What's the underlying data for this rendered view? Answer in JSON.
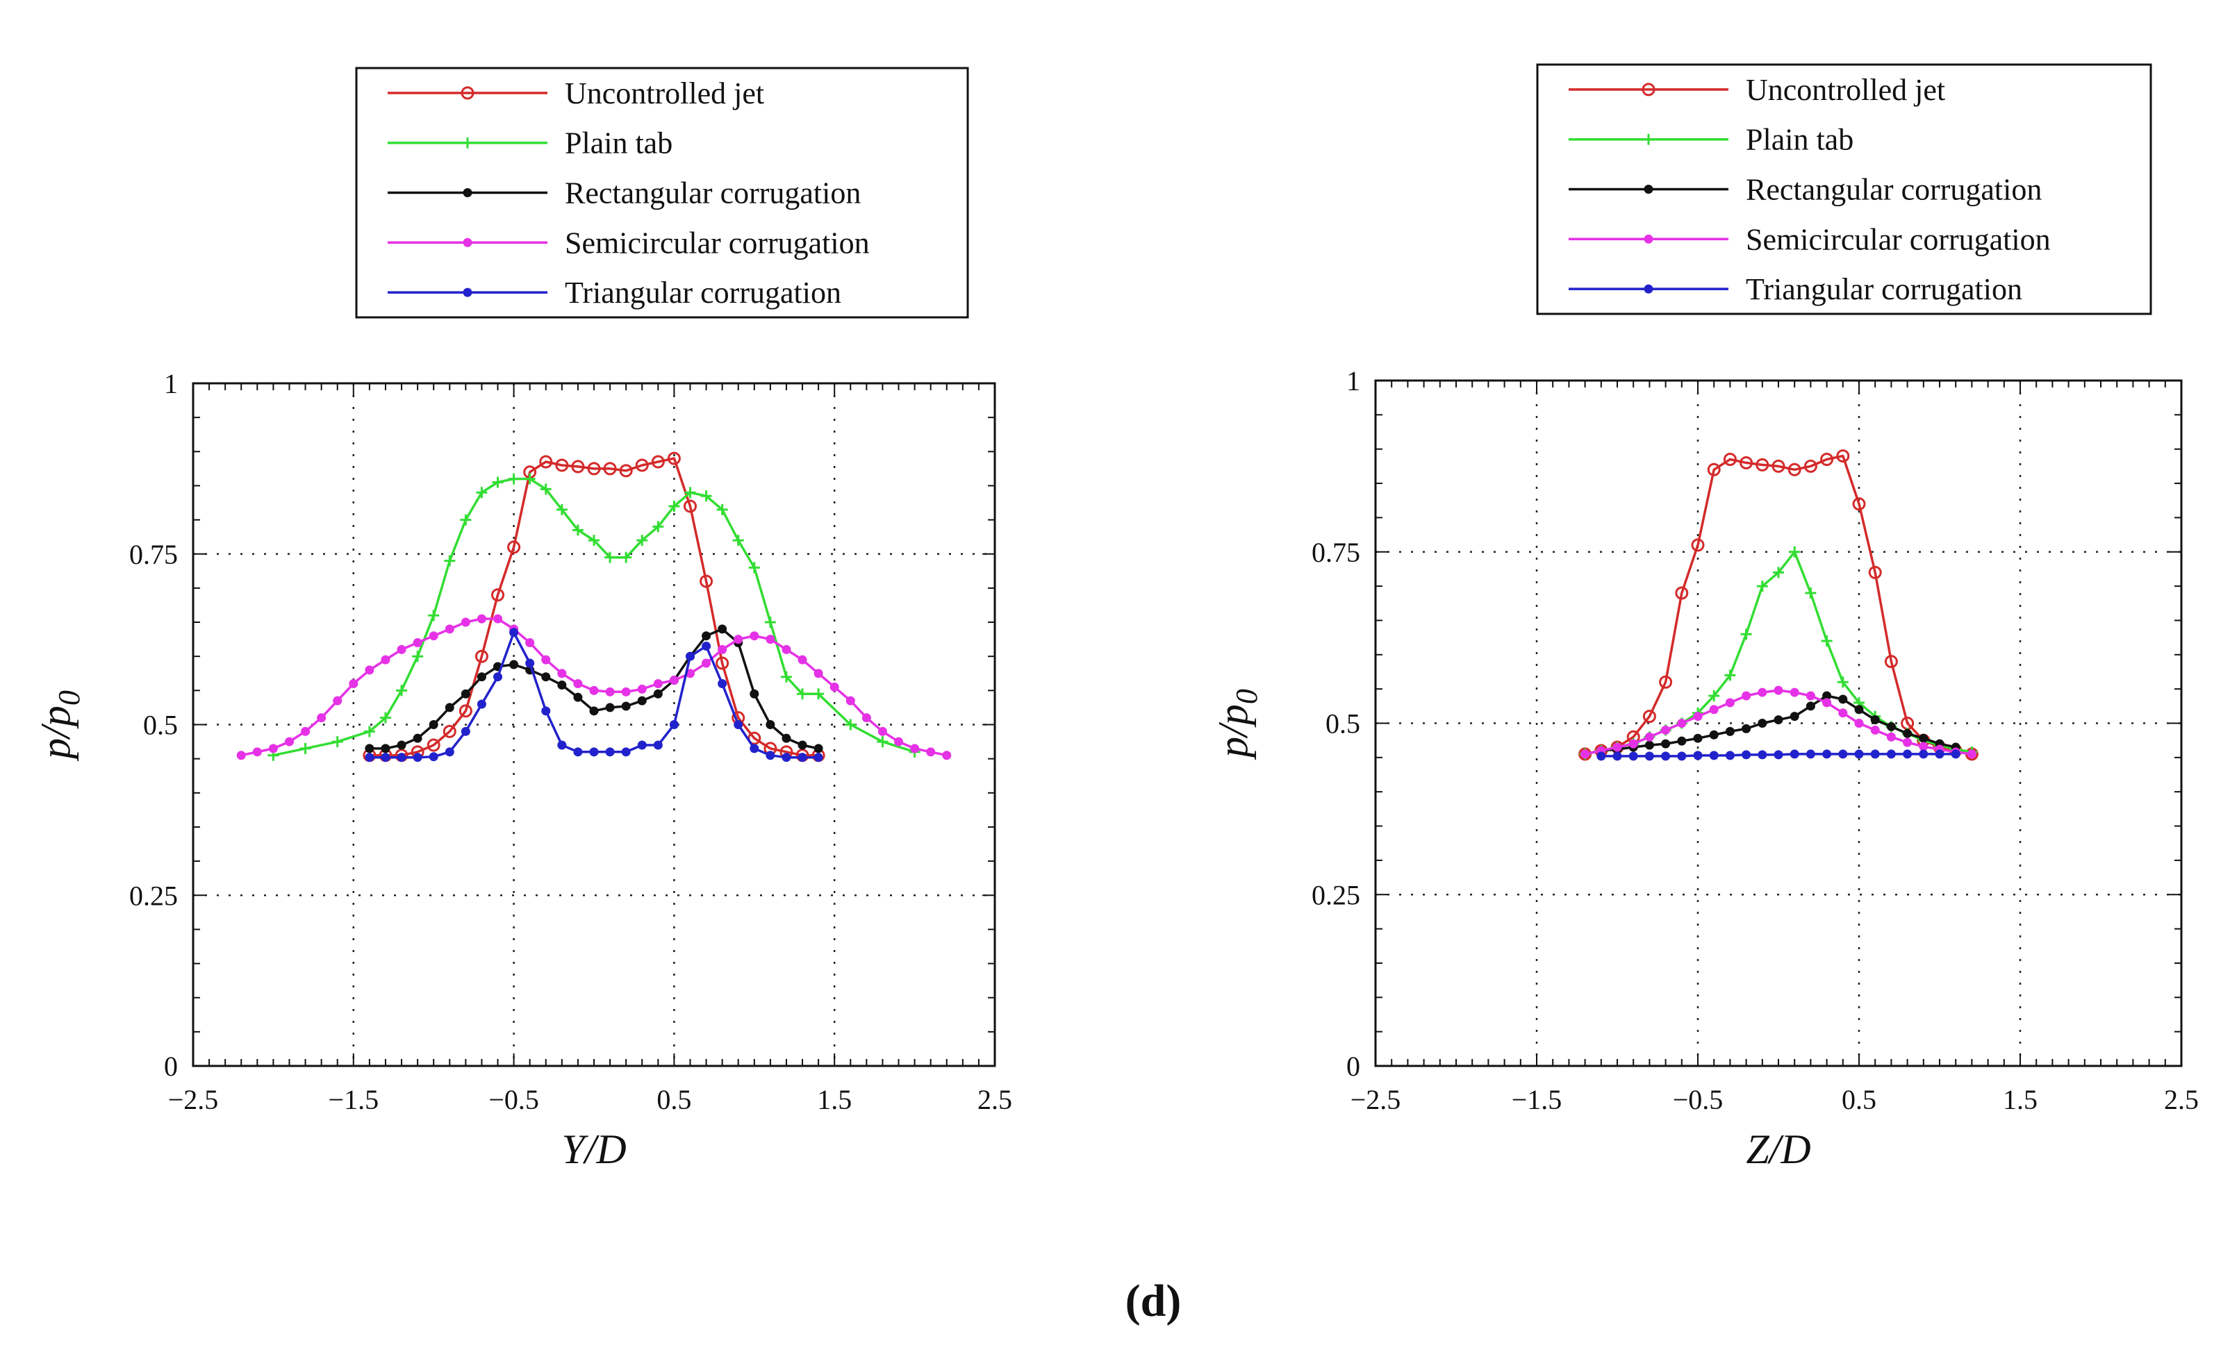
{
  "caption": "(d)",
  "colors": {
    "uncontrolled": "#d42a2a",
    "plain": "#33dd33",
    "rect": "#111111",
    "semi": "#e632e6",
    "tri": "#2222cc"
  },
  "chart_data": [
    {
      "type": "line",
      "xlabel": "Y/D",
      "ylabel_main": "p/p",
      "ylabel_sub": "0",
      "xlim": [
        -2.5,
        2.5
      ],
      "ylim": [
        0,
        1
      ],
      "xticks": [
        "-2.5",
        "-1.5",
        "-0.5",
        "0.5",
        "1.5",
        "2.5"
      ],
      "yticks": [
        "0",
        "0.25",
        "0.5",
        "0.75",
        "1"
      ],
      "legend": "top-center",
      "series": [
        {
          "name": "Uncontrolled jet",
          "color": "uncontrolled",
          "marker": "circle",
          "x": [
            -1.4,
            -1.3,
            -1.2,
            -1.1,
            -1.0,
            -0.9,
            -0.8,
            -0.7,
            -0.6,
            -0.5,
            -0.4,
            -0.3,
            -0.2,
            -0.1,
            0.0,
            0.1,
            0.2,
            0.3,
            0.4,
            0.5,
            0.6,
            0.7,
            0.8,
            0.9,
            1.0,
            1.1,
            1.2,
            1.3,
            1.4
          ],
          "y": [
            0.455,
            0.455,
            0.455,
            0.46,
            0.47,
            0.49,
            0.52,
            0.6,
            0.69,
            0.76,
            0.87,
            0.885,
            0.88,
            0.878,
            0.875,
            0.875,
            0.872,
            0.88,
            0.885,
            0.89,
            0.82,
            0.71,
            0.59,
            0.51,
            0.48,
            0.465,
            0.46,
            0.455,
            0.455
          ]
        },
        {
          "name": "Plain tab",
          "color": "plain",
          "marker": "plus",
          "x": [
            -2.0,
            -1.8,
            -1.6,
            -1.4,
            -1.3,
            -1.2,
            -1.1,
            -1.0,
            -0.9,
            -0.8,
            -0.7,
            -0.6,
            -0.5,
            -0.4,
            -0.3,
            -0.2,
            -0.1,
            0.0,
            0.1,
            0.2,
            0.3,
            0.4,
            0.5,
            0.6,
            0.7,
            0.8,
            0.9,
            1.0,
            1.1,
            1.2,
            1.3,
            1.4,
            1.6,
            1.8,
            2.0
          ],
          "y": [
            0.455,
            0.465,
            0.475,
            0.49,
            0.51,
            0.55,
            0.6,
            0.66,
            0.74,
            0.8,
            0.84,
            0.855,
            0.86,
            0.86,
            0.845,
            0.815,
            0.785,
            0.77,
            0.745,
            0.745,
            0.77,
            0.79,
            0.82,
            0.84,
            0.835,
            0.815,
            0.77,
            0.73,
            0.65,
            0.57,
            0.545,
            0.545,
            0.5,
            0.475,
            0.46
          ]
        },
        {
          "name": "Rectangular corrugation",
          "color": "rect",
          "marker": "dot",
          "x": [
            -1.4,
            -1.3,
            -1.2,
            -1.1,
            -1.0,
            -0.9,
            -0.8,
            -0.7,
            -0.6,
            -0.5,
            -0.4,
            -0.3,
            -0.2,
            -0.1,
            0.0,
            0.1,
            0.2,
            0.3,
            0.4,
            0.5,
            0.6,
            0.7,
            0.8,
            0.9,
            1.0,
            1.1,
            1.2,
            1.3,
            1.4
          ],
          "y": [
            0.465,
            0.465,
            0.47,
            0.48,
            0.5,
            0.525,
            0.545,
            0.57,
            0.585,
            0.588,
            0.58,
            0.57,
            0.558,
            0.54,
            0.52,
            0.525,
            0.527,
            0.535,
            0.545,
            0.565,
            0.6,
            0.63,
            0.64,
            0.62,
            0.545,
            0.5,
            0.48,
            0.47,
            0.465
          ]
        },
        {
          "name": "Semicircular corrugation",
          "color": "semi",
          "marker": "dot",
          "x": [
            -2.2,
            -2.1,
            -2.0,
            -1.9,
            -1.8,
            -1.7,
            -1.6,
            -1.5,
            -1.4,
            -1.3,
            -1.2,
            -1.1,
            -1.0,
            -0.9,
            -0.8,
            -0.7,
            -0.6,
            -0.5,
            -0.4,
            -0.3,
            -0.2,
            -0.1,
            0.0,
            0.1,
            0.2,
            0.3,
            0.4,
            0.5,
            0.6,
            0.7,
            0.8,
            0.9,
            1.0,
            1.1,
            1.2,
            1.3,
            1.4,
            1.5,
            1.6,
            1.7,
            1.8,
            1.9,
            2.0,
            2.1,
            2.2
          ],
          "y": [
            0.455,
            0.46,
            0.465,
            0.475,
            0.49,
            0.51,
            0.535,
            0.56,
            0.58,
            0.595,
            0.61,
            0.62,
            0.63,
            0.64,
            0.65,
            0.655,
            0.655,
            0.64,
            0.62,
            0.595,
            0.575,
            0.56,
            0.55,
            0.548,
            0.548,
            0.552,
            0.56,
            0.565,
            0.575,
            0.59,
            0.61,
            0.625,
            0.63,
            0.625,
            0.61,
            0.595,
            0.575,
            0.555,
            0.535,
            0.51,
            0.49,
            0.475,
            0.465,
            0.46,
            0.455
          ]
        },
        {
          "name": "Triangular corrugation",
          "color": "tri",
          "marker": "dot",
          "x": [
            -1.4,
            -1.3,
            -1.2,
            -1.1,
            -1.0,
            -0.9,
            -0.8,
            -0.7,
            -0.6,
            -0.5,
            -0.4,
            -0.3,
            -0.2,
            -0.1,
            0.0,
            0.1,
            0.2,
            0.3,
            0.4,
            0.5,
            0.6,
            0.7,
            0.8,
            0.9,
            1.0,
            1.1,
            1.2,
            1.3,
            1.4
          ],
          "y": [
            0.452,
            0.452,
            0.452,
            0.452,
            0.453,
            0.46,
            0.49,
            0.53,
            0.57,
            0.635,
            0.59,
            0.52,
            0.47,
            0.46,
            0.46,
            0.46,
            0.46,
            0.47,
            0.47,
            0.5,
            0.6,
            0.615,
            0.56,
            0.5,
            0.465,
            0.455,
            0.452,
            0.452,
            0.452
          ]
        }
      ]
    },
    {
      "type": "line",
      "xlabel": "Z/D",
      "ylabel_main": "p/p",
      "ylabel_sub": "0",
      "xlim": [
        -2.5,
        2.5
      ],
      "ylim": [
        0,
        1
      ],
      "xticks": [
        "-2.5",
        "-1.5",
        "-0.5",
        "0.5",
        "1.5",
        "2.5"
      ],
      "yticks": [
        "0",
        "0.25",
        "0.5",
        "0.75",
        "1"
      ],
      "legend": "top-center",
      "series": [
        {
          "name": "Uncontrolled jet",
          "color": "uncontrolled",
          "marker": "circle",
          "x": [
            -1.2,
            -1.1,
            -1.0,
            -0.9,
            -0.8,
            -0.7,
            -0.6,
            -0.5,
            -0.4,
            -0.3,
            -0.2,
            -0.1,
            0.0,
            0.1,
            0.2,
            0.3,
            0.4,
            0.5,
            0.6,
            0.7,
            0.8,
            0.9,
            1.0,
            1.1,
            1.2
          ],
          "y": [
            0.455,
            0.46,
            0.465,
            0.48,
            0.51,
            0.56,
            0.69,
            0.76,
            0.87,
            0.885,
            0.88,
            0.877,
            0.875,
            0.87,
            0.875,
            0.885,
            0.89,
            0.82,
            0.72,
            0.59,
            0.5,
            0.475,
            0.465,
            0.46,
            0.455
          ]
        },
        {
          "name": "Plain tab",
          "color": "plain",
          "marker": "plus",
          "x": [
            -1.2,
            -1.1,
            -1.0,
            -0.9,
            -0.8,
            -0.7,
            -0.6,
            -0.5,
            -0.4,
            -0.3,
            -0.2,
            -0.1,
            0.0,
            0.1,
            0.2,
            0.3,
            0.4,
            0.5,
            0.6,
            0.7,
            0.8,
            0.9,
            1.0,
            1.1,
            1.2
          ],
          "y": [
            0.455,
            0.46,
            0.465,
            0.47,
            0.48,
            0.49,
            0.5,
            0.515,
            0.54,
            0.57,
            0.63,
            0.7,
            0.72,
            0.75,
            0.69,
            0.62,
            0.56,
            0.53,
            0.51,
            0.495,
            0.485,
            0.475,
            0.468,
            0.462,
            0.458
          ]
        },
        {
          "name": "Rectangular corrugation",
          "color": "rect",
          "marker": "dot",
          "x": [
            -1.1,
            -1.0,
            -0.9,
            -0.8,
            -0.7,
            -0.6,
            -0.5,
            -0.4,
            -0.3,
            -0.2,
            -0.1,
            0.0,
            0.1,
            0.2,
            0.3,
            0.4,
            0.5,
            0.6,
            0.7,
            0.8,
            0.9,
            1.0,
            1.1
          ],
          "y": [
            0.46,
            0.462,
            0.465,
            0.468,
            0.47,
            0.474,
            0.478,
            0.483,
            0.488,
            0.492,
            0.5,
            0.505,
            0.51,
            0.525,
            0.54,
            0.535,
            0.52,
            0.505,
            0.495,
            0.485,
            0.478,
            0.47,
            0.465
          ]
        },
        {
          "name": "Semicircular corrugation",
          "color": "semi",
          "marker": "dot",
          "x": [
            -1.2,
            -1.1,
            -1.0,
            -0.9,
            -0.8,
            -0.7,
            -0.6,
            -0.5,
            -0.4,
            -0.3,
            -0.2,
            -0.1,
            0.0,
            0.1,
            0.2,
            0.3,
            0.4,
            0.5,
            0.6,
            0.7,
            0.8,
            0.9,
            1.0,
            1.1,
            1.2
          ],
          "y": [
            0.455,
            0.46,
            0.465,
            0.47,
            0.48,
            0.49,
            0.5,
            0.51,
            0.52,
            0.53,
            0.54,
            0.545,
            0.548,
            0.545,
            0.54,
            0.53,
            0.515,
            0.5,
            0.49,
            0.48,
            0.472,
            0.466,
            0.462,
            0.458,
            0.455
          ]
        },
        {
          "name": "Triangular corrugation",
          "color": "tri",
          "marker": "dot",
          "x": [
            -1.1,
            -1.0,
            -0.9,
            -0.8,
            -0.7,
            -0.6,
            -0.5,
            -0.4,
            -0.3,
            -0.2,
            -0.1,
            0.0,
            0.1,
            0.2,
            0.3,
            0.4,
            0.5,
            0.6,
            0.7,
            0.8,
            0.9,
            1.0,
            1.1
          ],
          "y": [
            0.452,
            0.452,
            0.452,
            0.452,
            0.452,
            0.452,
            0.453,
            0.453,
            0.453,
            0.454,
            0.454,
            0.454,
            0.455,
            0.455,
            0.455,
            0.455,
            0.455,
            0.455,
            0.455,
            0.455,
            0.455,
            0.455,
            0.455
          ]
        }
      ]
    }
  ]
}
